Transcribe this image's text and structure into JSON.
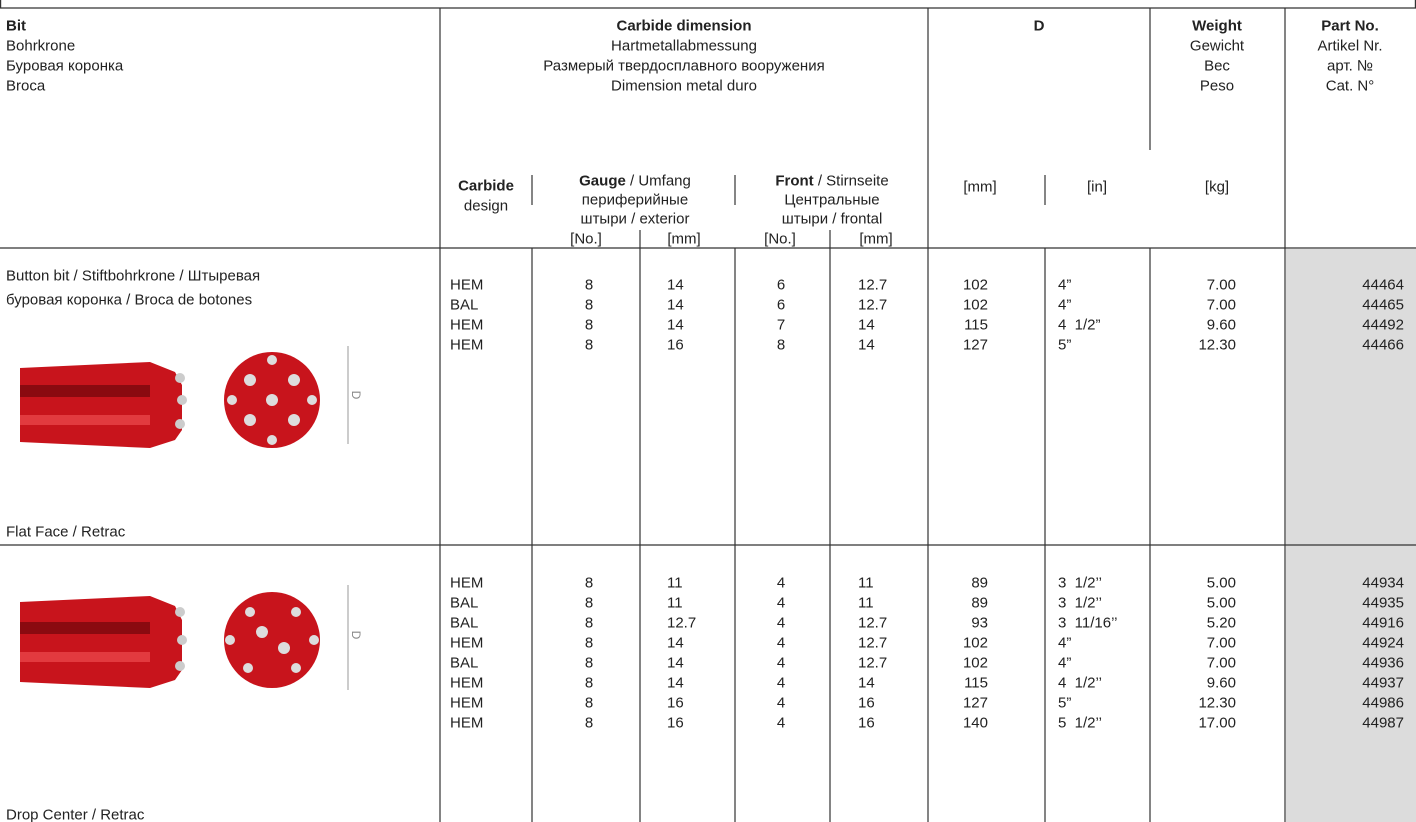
{
  "header": {
    "bit": [
      "Bit",
      "Bohrkrone",
      "Буровая коронка",
      "Broca"
    ],
    "carbide_dimension": [
      "Carbide dimension",
      "Hartmetallabmessung",
      "Размерый твердосплавного вооружения",
      "Dimension metal duro"
    ],
    "d": "D",
    "weight": [
      "Weight",
      "Gewicht",
      "Вес",
      "Peso"
    ],
    "part_no": [
      "Part No.",
      "Artikel Nr.",
      "арт. №",
      "Cat. N°"
    ],
    "carbide_design": [
      "Carbide",
      "design"
    ],
    "gauge": {
      "bold": "Gauge",
      "rest": " / Umfang",
      "lines": [
        "периферийные",
        "штыри / exterior"
      ]
    },
    "front": {
      "bold": "Front",
      "rest": " / Stirnseite",
      "lines": [
        "Центральные",
        "штыри / frontal"
      ]
    },
    "units": {
      "gauge_no": "[No.]",
      "gauge_mm": "[mm]",
      "front_no": "[No.]",
      "front_mm": "[mm]",
      "d_mm": "[mm]",
      "d_in": "[in]",
      "weight": "[kg]"
    }
  },
  "groups": [
    {
      "description": [
        "Button bit / Stiftbohrkrone / Штыревая",
        "буровая коронка / Broca de botones"
      ],
      "figure_label": "D",
      "subtitle": "Flat Face / Retrac",
      "rows": [
        [
          "HEM",
          "8",
          "14",
          "6",
          "12.7",
          "102",
          "4”",
          "7.00",
          "44464"
        ],
        [
          "BAL",
          "8",
          "14",
          "6",
          "12.7",
          "102",
          "4”",
          "7.00",
          "44465"
        ],
        [
          "HEM",
          "8",
          "14",
          "7",
          "14",
          "115",
          "4  1/2”",
          "9.60",
          "44492"
        ],
        [
          "HEM",
          "8",
          "16",
          "8",
          "14",
          "127",
          "5”",
          "12.30",
          "44466"
        ]
      ]
    },
    {
      "description": [],
      "figure_label": "D",
      "subtitle": "Drop Center / Retrac",
      "rows": [
        [
          "HEM",
          "8",
          "11",
          "4",
          "11",
          "89",
          "3  1/2’’",
          "5.00",
          "44934"
        ],
        [
          "BAL",
          "8",
          "11",
          "4",
          "11",
          "89",
          "3  1/2’’",
          "5.00",
          "44935"
        ],
        [
          "BAL",
          "8",
          "12.7",
          "4",
          "12.7",
          "93",
          "3  11/16’’",
          "5.20",
          "44916"
        ],
        [
          "HEM",
          "8",
          "14",
          "4",
          "12.7",
          "102",
          "4”",
          "7.00",
          "44924"
        ],
        [
          "BAL",
          "8",
          "14",
          "4",
          "12.7",
          "102",
          "4”",
          "7.00",
          "44936"
        ],
        [
          "HEM",
          "8",
          "14",
          "4",
          "14",
          "115",
          "4  1/2’’",
          "9.60",
          "44937"
        ],
        [
          "HEM",
          "8",
          "16",
          "4",
          "16",
          "127",
          "5”",
          "12.30",
          "44986"
        ],
        [
          "HEM",
          "8",
          "16",
          "4",
          "16",
          "140",
          "5  1/2’’",
          "17.00",
          "44987"
        ]
      ]
    }
  ]
}
